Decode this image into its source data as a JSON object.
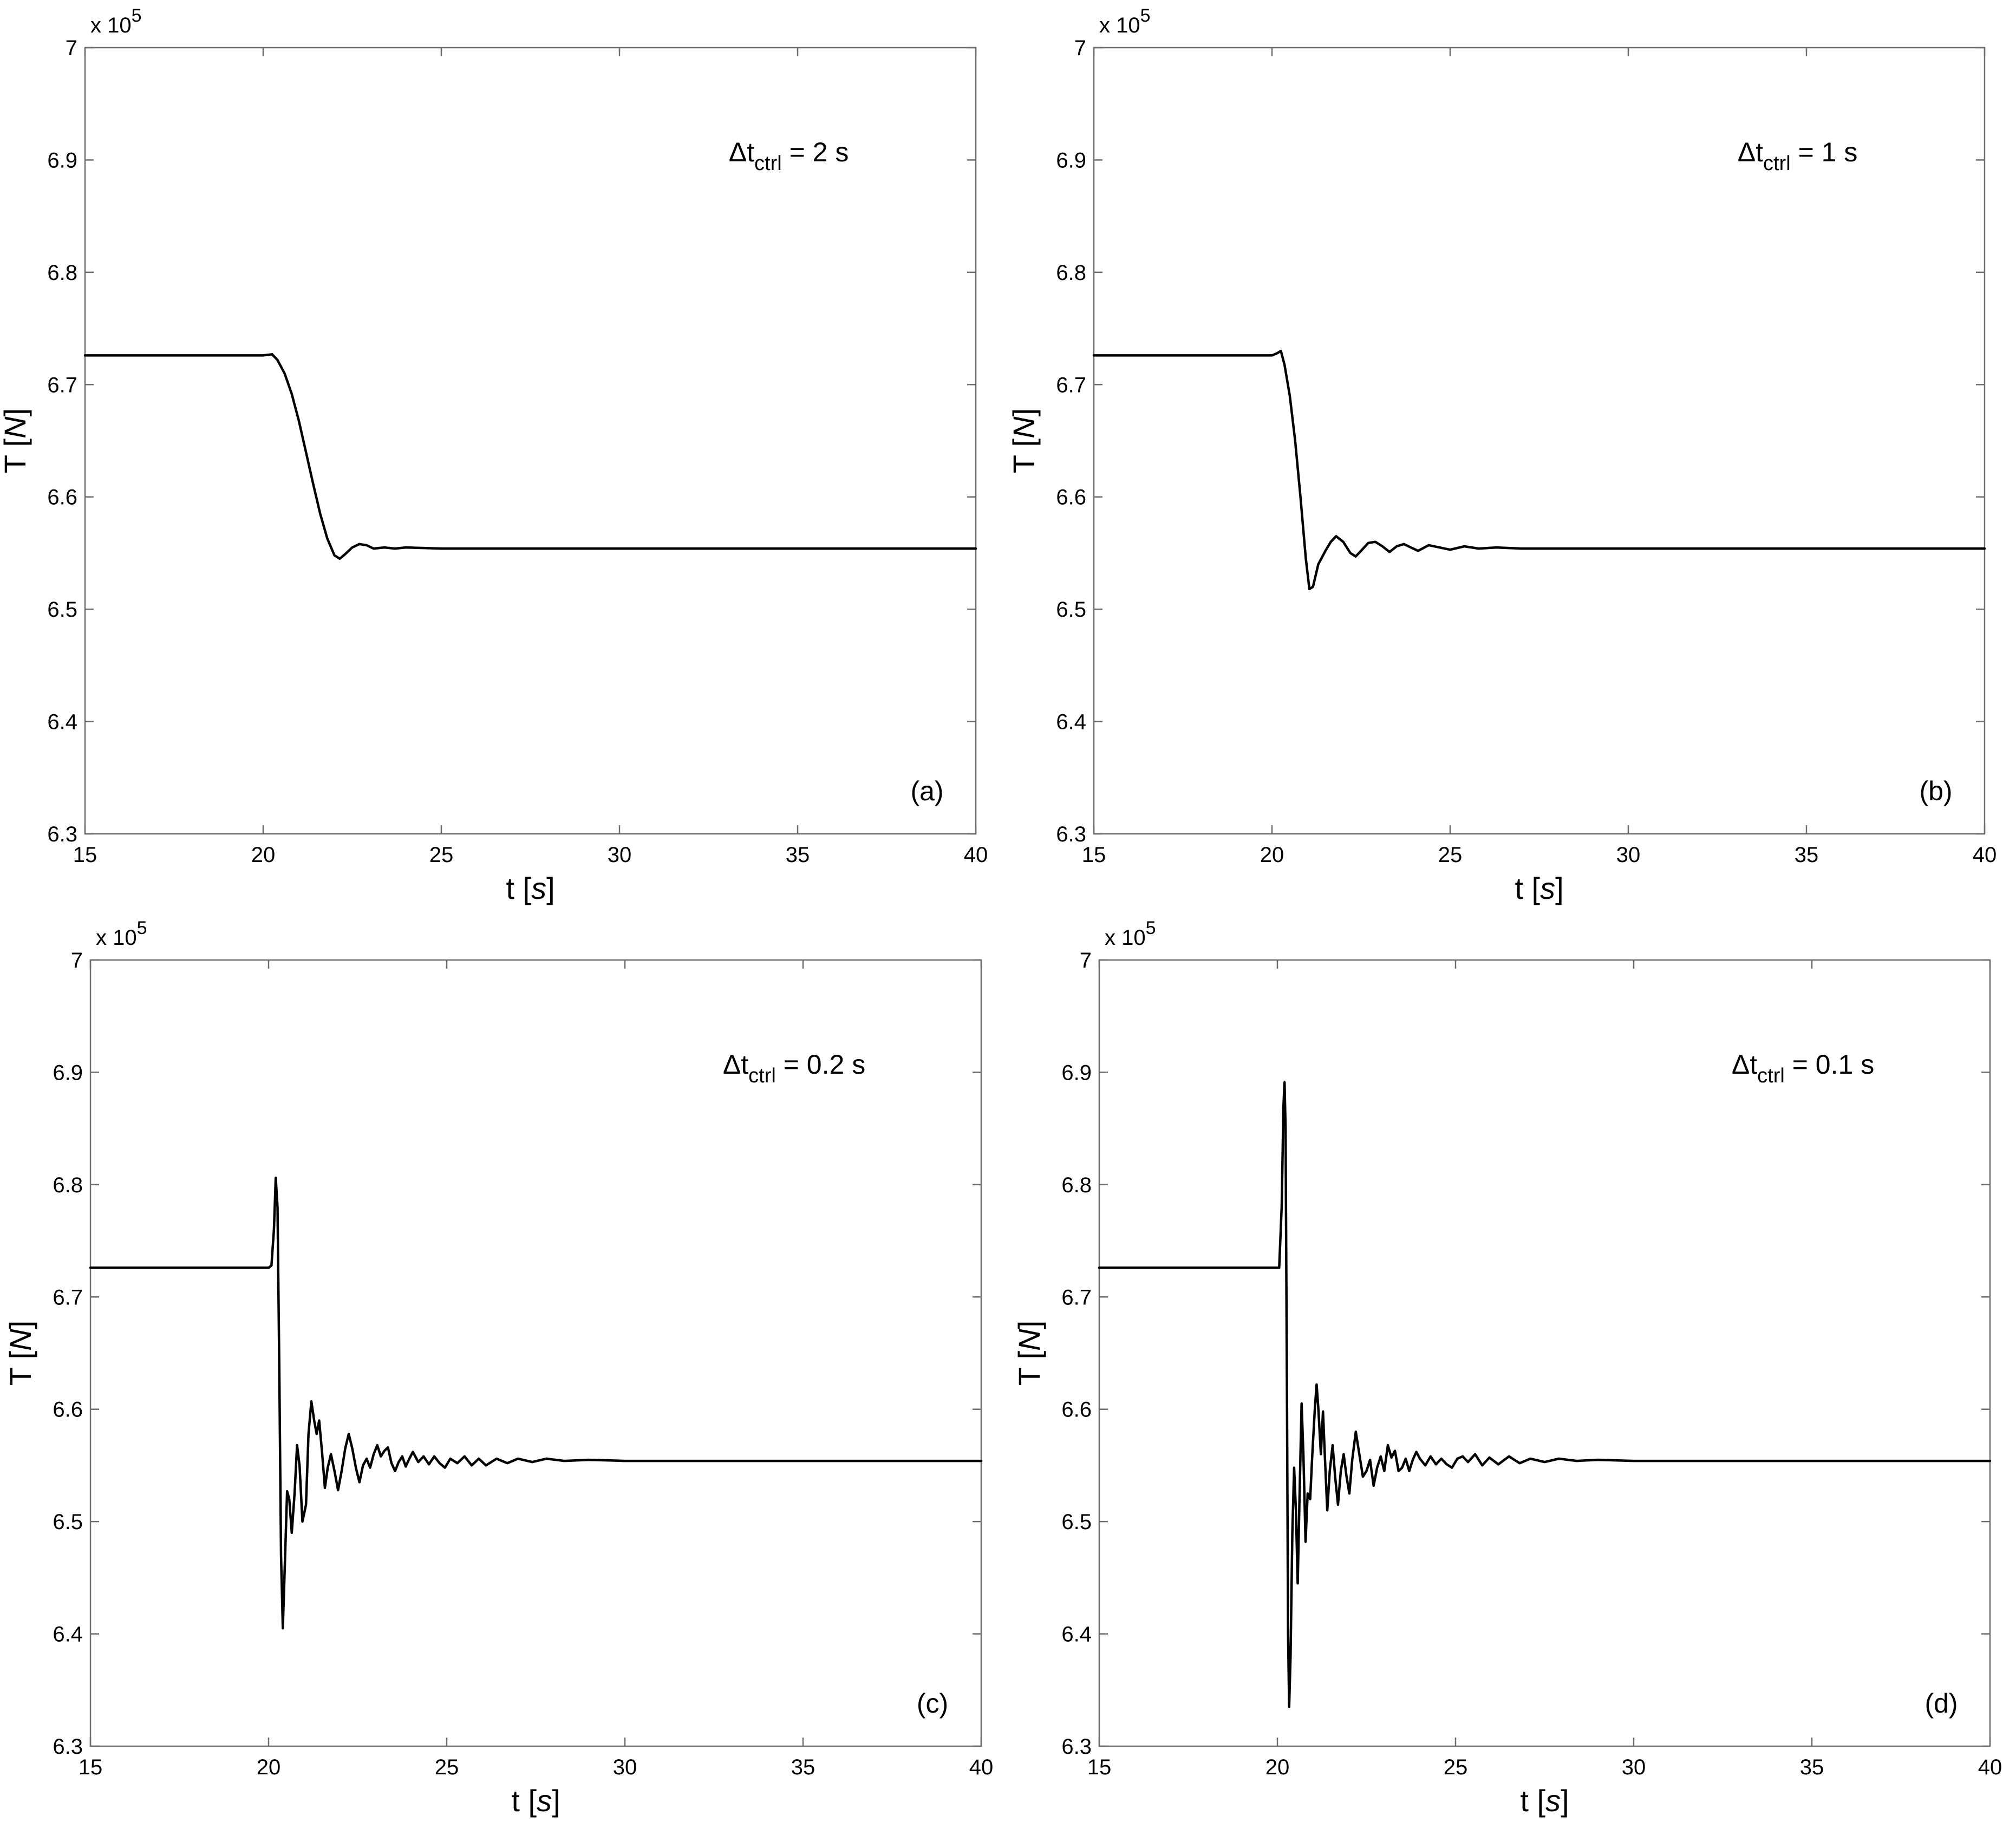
{
  "chart_data": [
    {
      "type": "line",
      "panel_label": "(a)",
      "annotation": {
        "symbol": "Δt",
        "subscript": "ctrl",
        "value": " = 2 s"
      },
      "xlabel": {
        "main": "t [",
        "unit": "s",
        "close": "]"
      },
      "ylabel": {
        "main": "T [",
        "unit": "N",
        "close": "]"
      },
      "y_multiplier": {
        "prefix": "x 10",
        "power": "5"
      },
      "xlim": [
        15,
        40
      ],
      "ylim": [
        6.3,
        7.0
      ],
      "xticks": [
        "15",
        "20",
        "25",
        "30",
        "35",
        "40"
      ],
      "yticks": [
        "6.3",
        "6.4",
        "6.5",
        "6.6",
        "6.7",
        "6.8",
        "6.9",
        "7"
      ],
      "grid": false,
      "series": [
        {
          "color": "#000000",
          "points": [
            [
              15,
              6.726
            ],
            [
              20.0,
              6.726
            ],
            [
              20.25,
              6.727
            ],
            [
              20.4,
              6.722
            ],
            [
              20.6,
              6.71
            ],
            [
              20.8,
              6.692
            ],
            [
              21.0,
              6.668
            ],
            [
              21.2,
              6.64
            ],
            [
              21.4,
              6.612
            ],
            [
              21.6,
              6.585
            ],
            [
              21.8,
              6.563
            ],
            [
              22.0,
              6.548
            ],
            [
              22.15,
              6.545
            ],
            [
              22.3,
              6.549
            ],
            [
              22.5,
              6.555
            ],
            [
              22.7,
              6.558
            ],
            [
              22.9,
              6.557
            ],
            [
              23.1,
              6.554
            ],
            [
              23.4,
              6.555
            ],
            [
              23.7,
              6.554
            ],
            [
              24.0,
              6.555
            ],
            [
              25.0,
              6.554
            ],
            [
              40,
              6.554
            ]
          ]
        }
      ]
    },
    {
      "type": "line",
      "panel_label": "(b)",
      "annotation": {
        "symbol": "Δt",
        "subscript": "ctrl",
        "value": " = 1 s"
      },
      "xlabel": {
        "main": "t [",
        "unit": "s",
        "close": "]"
      },
      "ylabel": {
        "main": "T [",
        "unit": "N",
        "close": "]"
      },
      "y_multiplier": {
        "prefix": "x 10",
        "power": "5"
      },
      "xlim": [
        15,
        40
      ],
      "ylim": [
        6.3,
        7.0
      ],
      "xticks": [
        "15",
        "20",
        "25",
        "30",
        "35",
        "40"
      ],
      "yticks": [
        "6.3",
        "6.4",
        "6.5",
        "6.6",
        "6.7",
        "6.8",
        "6.9",
        "7"
      ],
      "grid": false,
      "series": [
        {
          "color": "#000000",
          "points": [
            [
              15,
              6.726
            ],
            [
              20.0,
              6.726
            ],
            [
              20.15,
              6.728
            ],
            [
              20.25,
              6.73
            ],
            [
              20.35,
              6.718
            ],
            [
              20.5,
              6.69
            ],
            [
              20.65,
              6.65
            ],
            [
              20.8,
              6.6
            ],
            [
              20.95,
              6.545
            ],
            [
              21.05,
              6.518
            ],
            [
              21.15,
              6.52
            ],
            [
              21.3,
              6.54
            ],
            [
              21.5,
              6.552
            ],
            [
              21.65,
              6.56
            ],
            [
              21.8,
              6.565
            ],
            [
              22.0,
              6.56
            ],
            [
              22.2,
              6.55
            ],
            [
              22.35,
              6.547
            ],
            [
              22.5,
              6.552
            ],
            [
              22.7,
              6.559
            ],
            [
              22.9,
              6.56
            ],
            [
              23.1,
              6.556
            ],
            [
              23.3,
              6.551
            ],
            [
              23.5,
              6.556
            ],
            [
              23.7,
              6.558
            ],
            [
              23.9,
              6.555
            ],
            [
              24.1,
              6.552
            ],
            [
              24.4,
              6.557
            ],
            [
              24.7,
              6.555
            ],
            [
              25.0,
              6.553
            ],
            [
              25.4,
              6.556
            ],
            [
              25.8,
              6.554
            ],
            [
              26.3,
              6.555
            ],
            [
              27.0,
              6.554
            ],
            [
              28.0,
              6.554
            ],
            [
              40,
              6.554
            ]
          ]
        }
      ]
    },
    {
      "type": "line",
      "panel_label": "(c)",
      "annotation": {
        "symbol": "Δt",
        "subscript": "ctrl",
        "value": " = 0.2 s"
      },
      "xlabel": {
        "main": "t [",
        "unit": "s",
        "close": "]"
      },
      "ylabel": {
        "main": "T [",
        "unit": "N",
        "close": "]"
      },
      "y_multiplier": {
        "prefix": "x 10",
        "power": "5"
      },
      "xlim": [
        15,
        40
      ],
      "ylim": [
        6.3,
        7.0
      ],
      "xticks": [
        "15",
        "20",
        "25",
        "30",
        "35",
        "40"
      ],
      "yticks": [
        "6.3",
        "6.4",
        "6.5",
        "6.6",
        "6.7",
        "6.8",
        "6.9",
        "7"
      ],
      "grid": false,
      "series": [
        {
          "color": "#000000",
          "points": [
            [
              15,
              6.726
            ],
            [
              20.0,
              6.726
            ],
            [
              20.08,
              6.728
            ],
            [
              20.15,
              6.76
            ],
            [
              20.2,
              6.806
            ],
            [
              20.25,
              6.78
            ],
            [
              20.3,
              6.64
            ],
            [
              20.35,
              6.47
            ],
            [
              20.4,
              6.405
            ],
            [
              20.45,
              6.455
            ],
            [
              20.52,
              6.527
            ],
            [
              20.58,
              6.52
            ],
            [
              20.65,
              6.49
            ],
            [
              20.73,
              6.525
            ],
            [
              20.8,
              6.568
            ],
            [
              20.87,
              6.55
            ],
            [
              20.95,
              6.5
            ],
            [
              21.05,
              6.515
            ],
            [
              21.12,
              6.578
            ],
            [
              21.2,
              6.607
            ],
            [
              21.28,
              6.59
            ],
            [
              21.35,
              6.578
            ],
            [
              21.42,
              6.59
            ],
            [
              21.5,
              6.562
            ],
            [
              21.58,
              6.53
            ],
            [
              21.66,
              6.548
            ],
            [
              21.75,
              6.56
            ],
            [
              21.85,
              6.545
            ],
            [
              21.95,
              6.528
            ],
            [
              22.05,
              6.545
            ],
            [
              22.15,
              6.565
            ],
            [
              22.25,
              6.578
            ],
            [
              22.35,
              6.565
            ],
            [
              22.45,
              6.548
            ],
            [
              22.55,
              6.535
            ],
            [
              22.65,
              6.55
            ],
            [
              22.75,
              6.556
            ],
            [
              22.85,
              6.548
            ],
            [
              22.95,
              6.56
            ],
            [
              23.05,
              6.568
            ],
            [
              23.15,
              6.558
            ],
            [
              23.25,
              6.563
            ],
            [
              23.35,
              6.566
            ],
            [
              23.45,
              6.552
            ],
            [
              23.55,
              6.545
            ],
            [
              23.65,
              6.553
            ],
            [
              23.75,
              6.558
            ],
            [
              23.85,
              6.549
            ],
            [
              23.95,
              6.556
            ],
            [
              24.05,
              6.562
            ],
            [
              24.2,
              6.553
            ],
            [
              24.35,
              6.558
            ],
            [
              24.5,
              6.551
            ],
            [
              24.65,
              6.558
            ],
            [
              24.8,
              6.552
            ],
            [
              24.95,
              6.548
            ],
            [
              25.1,
              6.556
            ],
            [
              25.3,
              6.552
            ],
            [
              25.5,
              6.558
            ],
            [
              25.7,
              6.55
            ],
            [
              25.9,
              6.556
            ],
            [
              26.1,
              6.55
            ],
            [
              26.4,
              6.556
            ],
            [
              26.7,
              6.552
            ],
            [
              27.0,
              6.556
            ],
            [
              27.4,
              6.553
            ],
            [
              27.8,
              6.556
            ],
            [
              28.3,
              6.554
            ],
            [
              29.0,
              6.555
            ],
            [
              30.0,
              6.554
            ],
            [
              40,
              6.554
            ]
          ]
        }
      ]
    },
    {
      "type": "line",
      "panel_label": "(d)",
      "annotation": {
        "symbol": "Δt",
        "subscript": "ctrl",
        "value": " = 0.1 s"
      },
      "xlabel": {
        "main": "t [",
        "unit": "s",
        "close": "]"
      },
      "ylabel": {
        "main": "T [",
        "unit": "N",
        "close": "]"
      },
      "y_multiplier": {
        "prefix": "x 10",
        "power": "5"
      },
      "xlim": [
        15,
        40
      ],
      "ylim": [
        6.3,
        7.0
      ],
      "xticks": [
        "15",
        "20",
        "25",
        "30",
        "35",
        "40"
      ],
      "yticks": [
        "6.3",
        "6.4",
        "6.5",
        "6.6",
        "6.7",
        "6.8",
        "6.9",
        "7"
      ],
      "grid": false,
      "series": [
        {
          "color": "#000000",
          "points": [
            [
              15,
              6.726
            ],
            [
              20.05,
              6.726
            ],
            [
              20.12,
              6.78
            ],
            [
              20.17,
              6.87
            ],
            [
              20.2,
              6.891
            ],
            [
              20.23,
              6.85
            ],
            [
              20.27,
              6.6
            ],
            [
              20.3,
              6.4
            ],
            [
              20.33,
              6.335
            ],
            [
              20.37,
              6.38
            ],
            [
              20.42,
              6.49
            ],
            [
              20.47,
              6.548
            ],
            [
              20.52,
              6.51
            ],
            [
              20.57,
              6.445
            ],
            [
              20.62,
              6.52
            ],
            [
              20.68,
              6.605
            ],
            [
              20.73,
              6.56
            ],
            [
              20.79,
              6.482
            ],
            [
              20.85,
              6.525
            ],
            [
              20.92,
              6.52
            ],
            [
              20.98,
              6.56
            ],
            [
              21.05,
              6.6
            ],
            [
              21.1,
              6.622
            ],
            [
              21.15,
              6.6
            ],
            [
              21.22,
              6.56
            ],
            [
              21.28,
              6.598
            ],
            [
              21.33,
              6.56
            ],
            [
              21.4,
              6.51
            ],
            [
              21.47,
              6.545
            ],
            [
              21.55,
              6.568
            ],
            [
              21.62,
              6.54
            ],
            [
              21.7,
              6.515
            ],
            [
              21.78,
              6.545
            ],
            [
              21.86,
              6.56
            ],
            [
              21.94,
              6.54
            ],
            [
              22.02,
              6.525
            ],
            [
              22.1,
              6.555
            ],
            [
              22.2,
              6.58
            ],
            [
              22.3,
              6.56
            ],
            [
              22.4,
              6.54
            ],
            [
              22.5,
              6.545
            ],
            [
              22.6,
              6.555
            ],
            [
              22.7,
              6.532
            ],
            [
              22.8,
              6.548
            ],
            [
              22.9,
              6.558
            ],
            [
              23.0,
              6.545
            ],
            [
              23.1,
              6.568
            ],
            [
              23.2,
              6.557
            ],
            [
              23.3,
              6.563
            ],
            [
              23.4,
              6.545
            ],
            [
              23.5,
              6.548
            ],
            [
              23.6,
              6.556
            ],
            [
              23.7,
              6.545
            ],
            [
              23.8,
              6.555
            ],
            [
              23.9,
              6.562
            ],
            [
              24.0,
              6.556
            ],
            [
              24.15,
              6.55
            ],
            [
              24.3,
              6.558
            ],
            [
              24.45,
              6.551
            ],
            [
              24.6,
              6.556
            ],
            [
              24.75,
              6.551
            ],
            [
              24.9,
              6.548
            ],
            [
              25.05,
              6.556
            ],
            [
              25.2,
              6.558
            ],
            [
              25.35,
              6.553
            ],
            [
              25.55,
              6.56
            ],
            [
              25.75,
              6.55
            ],
            [
              25.95,
              6.557
            ],
            [
              26.2,
              6.551
            ],
            [
              26.5,
              6.558
            ],
            [
              26.8,
              6.552
            ],
            [
              27.1,
              6.556
            ],
            [
              27.5,
              6.553
            ],
            [
              27.9,
              6.556
            ],
            [
              28.4,
              6.554
            ],
            [
              29.0,
              6.555
            ],
            [
              30.0,
              6.554
            ],
            [
              40,
              6.554
            ]
          ]
        }
      ]
    }
  ]
}
